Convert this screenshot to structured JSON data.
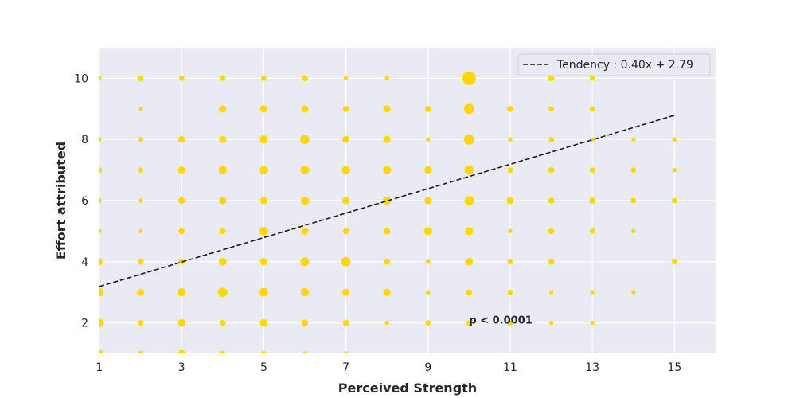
{
  "chart_data": {
    "type": "scatter",
    "title": "",
    "xlabel": "Perceived Strength",
    "ylabel": "Effort attributed",
    "xlim": [
      1,
      16
    ],
    "ylim": [
      1,
      11
    ],
    "xticks": [
      1,
      3,
      5,
      7,
      9,
      11,
      13,
      15
    ],
    "yticks": [
      2,
      4,
      6,
      8,
      10
    ],
    "grid": true,
    "background_color": "#eaeaf2",
    "point_color": "#ffd700",
    "legend_position": "top-right",
    "size_encoding": "count of observations at each (x, y) pair",
    "series": [
      {
        "name": "observations",
        "points": [
          {
            "x": 1,
            "y": 10,
            "count": 1
          },
          {
            "x": 2,
            "y": 10,
            "count": 3
          },
          {
            "x": 3,
            "y": 10,
            "count": 2
          },
          {
            "x": 4,
            "y": 10,
            "count": 2
          },
          {
            "x": 5,
            "y": 10,
            "count": 2
          },
          {
            "x": 6,
            "y": 10,
            "count": 3
          },
          {
            "x": 7,
            "y": 10,
            "count": 1
          },
          {
            "x": 8,
            "y": 10,
            "count": 1
          },
          {
            "x": 10,
            "y": 10,
            "count": 25
          },
          {
            "x": 12,
            "y": 10,
            "count": 3
          },
          {
            "x": 13,
            "y": 10,
            "count": 2
          },
          {
            "x": 2,
            "y": 9,
            "count": 1
          },
          {
            "x": 4,
            "y": 9,
            "count": 5
          },
          {
            "x": 5,
            "y": 9,
            "count": 5
          },
          {
            "x": 6,
            "y": 9,
            "count": 5
          },
          {
            "x": 7,
            "y": 9,
            "count": 3
          },
          {
            "x": 8,
            "y": 9,
            "count": 5
          },
          {
            "x": 9,
            "y": 9,
            "count": 3
          },
          {
            "x": 10,
            "y": 9,
            "count": 13
          },
          {
            "x": 11,
            "y": 9,
            "count": 3
          },
          {
            "x": 12,
            "y": 9,
            "count": 2
          },
          {
            "x": 13,
            "y": 9,
            "count": 2
          },
          {
            "x": 1,
            "y": 8,
            "count": 1
          },
          {
            "x": 2,
            "y": 8,
            "count": 2
          },
          {
            "x": 3,
            "y": 8,
            "count": 4
          },
          {
            "x": 4,
            "y": 8,
            "count": 5
          },
          {
            "x": 5,
            "y": 8,
            "count": 7
          },
          {
            "x": 6,
            "y": 8,
            "count": 10
          },
          {
            "x": 7,
            "y": 8,
            "count": 5
          },
          {
            "x": 8,
            "y": 8,
            "count": 5
          },
          {
            "x": 9,
            "y": 8,
            "count": 1
          },
          {
            "x": 10,
            "y": 8,
            "count": 13
          },
          {
            "x": 11,
            "y": 8,
            "count": 1
          },
          {
            "x": 12,
            "y": 8,
            "count": 2
          },
          {
            "x": 13,
            "y": 8,
            "count": 1
          },
          {
            "x": 14,
            "y": 8,
            "count": 1
          },
          {
            "x": 15,
            "y": 8,
            "count": 1
          },
          {
            "x": 1,
            "y": 7,
            "count": 2
          },
          {
            "x": 2,
            "y": 7,
            "count": 2
          },
          {
            "x": 3,
            "y": 7,
            "count": 5
          },
          {
            "x": 4,
            "y": 7,
            "count": 7
          },
          {
            "x": 5,
            "y": 7,
            "count": 7
          },
          {
            "x": 6,
            "y": 7,
            "count": 8
          },
          {
            "x": 7,
            "y": 7,
            "count": 7
          },
          {
            "x": 8,
            "y": 7,
            "count": 7
          },
          {
            "x": 9,
            "y": 7,
            "count": 5
          },
          {
            "x": 10,
            "y": 7,
            "count": 10
          },
          {
            "x": 11,
            "y": 7,
            "count": 2
          },
          {
            "x": 12,
            "y": 7,
            "count": 3
          },
          {
            "x": 13,
            "y": 7,
            "count": 2
          },
          {
            "x": 14,
            "y": 7,
            "count": 2
          },
          {
            "x": 15,
            "y": 7,
            "count": 1
          },
          {
            "x": 1,
            "y": 6,
            "count": 1
          },
          {
            "x": 2,
            "y": 6,
            "count": 1
          },
          {
            "x": 3,
            "y": 6,
            "count": 4
          },
          {
            "x": 4,
            "y": 6,
            "count": 5
          },
          {
            "x": 5,
            "y": 6,
            "count": 5
          },
          {
            "x": 6,
            "y": 6,
            "count": 7
          },
          {
            "x": 7,
            "y": 6,
            "count": 5
          },
          {
            "x": 8,
            "y": 6,
            "count": 7
          },
          {
            "x": 9,
            "y": 6,
            "count": 5
          },
          {
            "x": 10,
            "y": 6,
            "count": 10
          },
          {
            "x": 11,
            "y": 6,
            "count": 5
          },
          {
            "x": 12,
            "y": 6,
            "count": 3
          },
          {
            "x": 13,
            "y": 6,
            "count": 3
          },
          {
            "x": 14,
            "y": 6,
            "count": 2
          },
          {
            "x": 15,
            "y": 6,
            "count": 2
          },
          {
            "x": 1,
            "y": 5,
            "count": 1
          },
          {
            "x": 2,
            "y": 5,
            "count": 1
          },
          {
            "x": 3,
            "y": 5,
            "count": 3
          },
          {
            "x": 4,
            "y": 5,
            "count": 3
          },
          {
            "x": 5,
            "y": 5,
            "count": 8
          },
          {
            "x": 6,
            "y": 5,
            "count": 5
          },
          {
            "x": 7,
            "y": 5,
            "count": 3
          },
          {
            "x": 8,
            "y": 5,
            "count": 4
          },
          {
            "x": 9,
            "y": 5,
            "count": 7
          },
          {
            "x": 10,
            "y": 5,
            "count": 7
          },
          {
            "x": 11,
            "y": 5,
            "count": 1
          },
          {
            "x": 12,
            "y": 5,
            "count": 3
          },
          {
            "x": 13,
            "y": 5,
            "count": 2
          },
          {
            "x": 14,
            "y": 5,
            "count": 1
          },
          {
            "x": 1,
            "y": 4,
            "count": 4
          },
          {
            "x": 2,
            "y": 4,
            "count": 3
          },
          {
            "x": 3,
            "y": 4,
            "count": 3
          },
          {
            "x": 4,
            "y": 4,
            "count": 6
          },
          {
            "x": 5,
            "y": 4,
            "count": 5
          },
          {
            "x": 6,
            "y": 4,
            "count": 8
          },
          {
            "x": 7,
            "y": 4,
            "count": 10
          },
          {
            "x": 8,
            "y": 4,
            "count": 3
          },
          {
            "x": 9,
            "y": 4,
            "count": 1
          },
          {
            "x": 10,
            "y": 4,
            "count": 6
          },
          {
            "x": 11,
            "y": 4,
            "count": 2
          },
          {
            "x": 12,
            "y": 4,
            "count": 3
          },
          {
            "x": 15,
            "y": 4,
            "count": 2
          },
          {
            "x": 1,
            "y": 3,
            "count": 7
          },
          {
            "x": 2,
            "y": 3,
            "count": 5
          },
          {
            "x": 3,
            "y": 3,
            "count": 7
          },
          {
            "x": 4,
            "y": 3,
            "count": 10
          },
          {
            "x": 5,
            "y": 3,
            "count": 8
          },
          {
            "x": 6,
            "y": 3,
            "count": 7
          },
          {
            "x": 7,
            "y": 3,
            "count": 5
          },
          {
            "x": 8,
            "y": 3,
            "count": 5
          },
          {
            "x": 9,
            "y": 3,
            "count": 1
          },
          {
            "x": 10,
            "y": 3,
            "count": 3
          },
          {
            "x": 11,
            "y": 3,
            "count": 2
          },
          {
            "x": 12,
            "y": 3,
            "count": 1
          },
          {
            "x": 13,
            "y": 3,
            "count": 1
          },
          {
            "x": 14,
            "y": 3,
            "count": 1
          },
          {
            "x": 1,
            "y": 2,
            "count": 8
          },
          {
            "x": 2,
            "y": 2,
            "count": 3
          },
          {
            "x": 3,
            "y": 2,
            "count": 6
          },
          {
            "x": 4,
            "y": 2,
            "count": 3
          },
          {
            "x": 5,
            "y": 2,
            "count": 6
          },
          {
            "x": 6,
            "y": 2,
            "count": 4
          },
          {
            "x": 7,
            "y": 2,
            "count": 3
          },
          {
            "x": 8,
            "y": 2,
            "count": 1
          },
          {
            "x": 9,
            "y": 2,
            "count": 2
          },
          {
            "x": 10,
            "y": 2,
            "count": 2
          },
          {
            "x": 11,
            "y": 2,
            "count": 2
          },
          {
            "x": 12,
            "y": 2,
            "count": 1
          },
          {
            "x": 13,
            "y": 2,
            "count": 1
          },
          {
            "x": 1,
            "y": 1,
            "count": 5
          },
          {
            "x": 2,
            "y": 1,
            "count": 2
          },
          {
            "x": 3,
            "y": 1,
            "count": 5
          },
          {
            "x": 4,
            "y": 1,
            "count": 2
          },
          {
            "x": 5,
            "y": 1,
            "count": 2
          },
          {
            "x": 6,
            "y": 1,
            "count": 1
          },
          {
            "x": 7,
            "y": 1,
            "count": 1
          }
        ]
      }
    ],
    "trend_line": {
      "label": "Tendency : 0.40x + 2.79",
      "slope": 0.4,
      "intercept": 2.79,
      "x_range": [
        1,
        15
      ],
      "color": "#1a1a1a"
    },
    "annotation": {
      "text": "p < 0.0001",
      "x": 10,
      "y": 2
    }
  }
}
